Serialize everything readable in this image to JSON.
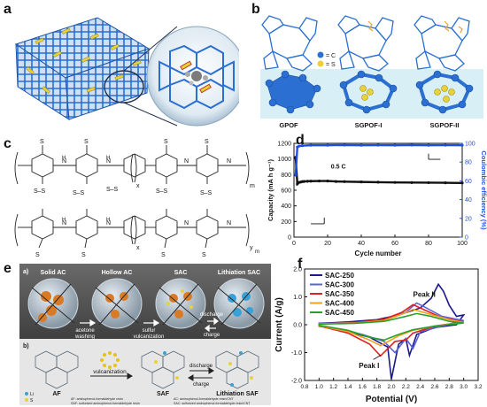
{
  "panels": {
    "a": {
      "label": "a"
    },
    "b": {
      "label": "b",
      "legend_c": "= C",
      "legend_s": "= S",
      "structures": [
        "GPOF",
        "SGPOF-I",
        "SGPOF-II"
      ],
      "colors": {
        "carbon": "#2a6fd1",
        "sulfur": "#e8d23a",
        "band": "#d8eff6"
      }
    },
    "c": {
      "label": "c",
      "subs": {
        "x": "x",
        "ym": "y",
        "m": "m"
      },
      "atoms": {
        "S": "S",
        "N": "N",
        "NH": "H"
      },
      "free_s": [
        "S–S",
        "S–S",
        "S–S",
        "S–S",
        "S–S"
      ]
    },
    "d": {
      "label": "d",
      "rate_label": "0.5 C"
    },
    "e": {
      "label": "e",
      "sub_a": "a)",
      "sub_b": "b)",
      "titles": [
        "Solid AC",
        "Hollow AC",
        "SAC",
        "Lithiation SAC"
      ],
      "arrows": [
        [
          "acetone",
          "washing"
        ],
        [
          "sulfur",
          "vulcanization"
        ],
        [
          "discharge",
          "charge"
        ]
      ],
      "bottom_labels": {
        "af": "AF",
        "saf": "SAF",
        "lith": "Lithiation SAF",
        "vulc": "vulcanization",
        "discharge": "discharge",
        "charge": "charge"
      },
      "legend": {
        "li": "Li",
        "s": "S"
      },
      "footnotes": [
        "AF: aminophenol-formaldehyde resin",
        "SAF: sulfurized aminophenol-formaldehyde resin",
        "AC: aminophenol-formaldehyde resin/CNT",
        "SAC: sulfurized aminophenol-formaldehyde resin/CNT"
      ]
    },
    "f": {
      "label": "f"
    }
  },
  "chart_data": [
    {
      "type": "line",
      "panel": "d",
      "xlabel": "Cycle number",
      "ylabel": "Capacity (mA h g⁻¹)",
      "y2label": "Coulombic efficiency (%)",
      "xlim": [
        0,
        100
      ],
      "ylim": [
        0,
        1200
      ],
      "y2lim": [
        0,
        100
      ],
      "xticks": [
        0,
        20,
        40,
        60,
        80,
        100
      ],
      "yticks": [
        0,
        200,
        400,
        600,
        800,
        1000,
        1200
      ],
      "y2ticks": [
        0,
        20,
        40,
        60,
        80,
        100
      ],
      "colors": {
        "capacity": "#111111",
        "efficiency": "#1f4fe0"
      },
      "series": [
        {
          "axis": "left",
          "x": [
            1,
            2,
            3,
            4,
            5,
            6,
            8,
            10,
            15,
            20,
            25,
            30,
            40,
            50,
            60,
            70,
            80,
            90,
            100
          ],
          "values": [
            1020,
            680,
            700,
            705,
            710,
            712,
            715,
            716,
            718,
            718,
            712,
            710,
            706,
            703,
            700,
            698,
            697,
            695,
            693
          ]
        },
        {
          "axis": "right",
          "x": [
            1,
            2,
            3,
            5,
            10,
            20,
            30,
            40,
            50,
            60,
            70,
            80,
            90,
            100
          ],
          "values": [
            66,
            96,
            97,
            97.5,
            98,
            98,
            98.2,
            98,
            98.1,
            98,
            98.2,
            98,
            98.1,
            98
          ]
        }
      ]
    },
    {
      "type": "line",
      "panel": "f",
      "xlabel": "Potential (V)",
      "ylabel": "Current (A/g)",
      "xlim": [
        0.8,
        3.2
      ],
      "ylim": [
        -2.0,
        2.0
      ],
      "xticks": [
        0.8,
        1.0,
        1.2,
        1.4,
        1.6,
        1.8,
        2.0,
        2.2,
        2.4,
        2.6,
        2.8,
        3.0,
        3.2
      ],
      "yticks": [
        -2.0,
        -1.0,
        0.0,
        1.0,
        2.0
      ],
      "annotations": [
        "Peak I",
        "Peak II"
      ],
      "series": [
        {
          "name": "SAC-250",
          "color": "#1a1a8c",
          "points": [
            [
              1.0,
              0.05
            ],
            [
              1.4,
              0.1
            ],
            [
              1.8,
              0.18
            ],
            [
              2.1,
              0.35
            ],
            [
              2.4,
              0.6
            ],
            [
              2.55,
              0.95
            ],
            [
              2.65,
              1.45
            ],
            [
              2.72,
              1.2
            ],
            [
              2.8,
              0.7
            ],
            [
              2.9,
              0.3
            ],
            [
              3.0,
              0.35
            ],
            [
              2.9,
              0.0
            ],
            [
              2.6,
              -0.1
            ],
            [
              2.35,
              -0.35
            ],
            [
              2.25,
              -1.1
            ],
            [
              2.2,
              -0.5
            ],
            [
              2.1,
              -0.7
            ],
            [
              2.0,
              -1.95
            ],
            [
              1.95,
              -0.8
            ],
            [
              1.7,
              -0.45
            ],
            [
              1.4,
              -0.25
            ],
            [
              1.0,
              -0.05
            ]
          ]
        },
        {
          "name": "SAC-300",
          "color": "#5b63d6",
          "points": [
            [
              1.0,
              0.04
            ],
            [
              1.5,
              0.08
            ],
            [
              1.9,
              0.18
            ],
            [
              2.2,
              0.45
            ],
            [
              2.35,
              0.78
            ],
            [
              2.45,
              0.65
            ],
            [
              2.7,
              0.3
            ],
            [
              3.0,
              0.15
            ],
            [
              2.7,
              -0.05
            ],
            [
              2.4,
              -0.25
            ],
            [
              2.3,
              -0.85
            ],
            [
              2.2,
              -0.5
            ],
            [
              2.05,
              -1.0
            ],
            [
              1.9,
              -0.6
            ],
            [
              1.6,
              -0.35
            ],
            [
              1.2,
              -0.12
            ],
            [
              1.0,
              -0.04
            ]
          ]
        },
        {
          "name": "SAC-350",
          "color": "#e02020",
          "points": [
            [
              1.0,
              0.03
            ],
            [
              1.5,
              0.07
            ],
            [
              1.9,
              0.2
            ],
            [
              2.15,
              0.45
            ],
            [
              2.3,
              0.72
            ],
            [
              2.4,
              0.6
            ],
            [
              2.7,
              0.25
            ],
            [
              3.0,
              0.1
            ],
            [
              2.6,
              -0.05
            ],
            [
              2.3,
              -0.3
            ],
            [
              2.2,
              -0.55
            ],
            [
              2.05,
              -0.6
            ],
            [
              1.85,
              -1.12
            ],
            [
              1.7,
              -0.7
            ],
            [
              1.4,
              -0.3
            ],
            [
              1.0,
              -0.04
            ]
          ]
        },
        {
          "name": "SAC-400",
          "color": "#f0a020",
          "points": [
            [
              1.0,
              0.03
            ],
            [
              1.5,
              0.06
            ],
            [
              1.9,
              0.15
            ],
            [
              2.15,
              0.38
            ],
            [
              2.3,
              0.55
            ],
            [
              2.5,
              0.4
            ],
            [
              2.8,
              0.18
            ],
            [
              3.0,
              0.08
            ],
            [
              2.6,
              -0.05
            ],
            [
              2.3,
              -0.2
            ],
            [
              2.1,
              -0.4
            ],
            [
              1.85,
              -0.75
            ],
            [
              1.7,
              -0.55
            ],
            [
              1.4,
              -0.25
            ],
            [
              1.0,
              -0.03
            ]
          ]
        },
        {
          "name": "SAC-450",
          "color": "#2aa02a",
          "points": [
            [
              1.0,
              0.02
            ],
            [
              1.5,
              0.05
            ],
            [
              1.9,
              0.12
            ],
            [
              2.2,
              0.3
            ],
            [
              2.35,
              0.4
            ],
            [
              2.55,
              0.3
            ],
            [
              2.8,
              0.12
            ],
            [
              3.0,
              0.06
            ],
            [
              2.6,
              -0.05
            ],
            [
              2.3,
              -0.18
            ],
            [
              2.1,
              -0.35
            ],
            [
              1.9,
              -0.55
            ],
            [
              1.7,
              -0.45
            ],
            [
              1.4,
              -0.2
            ],
            [
              1.0,
              -0.02
            ]
          ]
        }
      ]
    }
  ]
}
